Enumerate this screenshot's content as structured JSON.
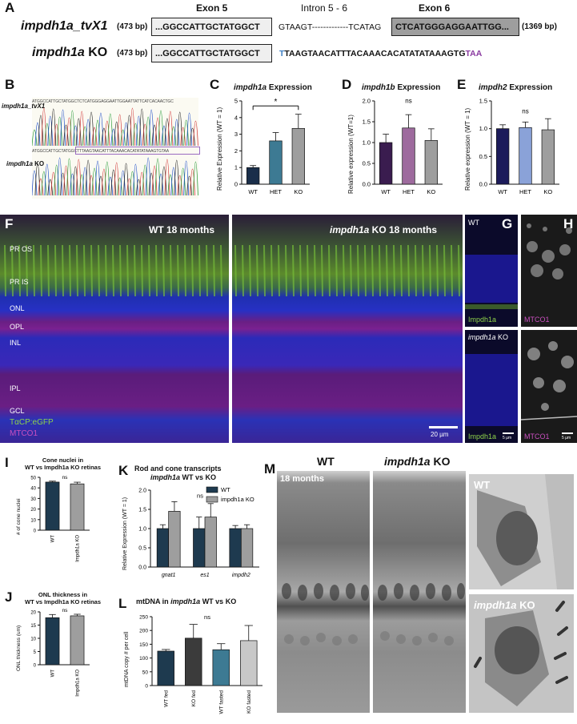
{
  "panelA": {
    "letter": "A",
    "exon5": "Exon 5",
    "intron": "Intron 5 - 6",
    "exon6": "Exon 6",
    "row1_name": "impdh1a_tvX1",
    "row1_left_bp": "(473 bp)",
    "row1_box1": "...GGCCATTGCTATGGCT",
    "row1_intron_seq": "GTAAGT-------------TCATAG",
    "row1_box2": "CTCATGGGAGGAATTGG...",
    "row1_right_bp": "(1369 bp)",
    "row2_name_italic": "impdh1a",
    "row2_name_rest": " KO",
    "row2_left_bp": "(473 bp)",
    "row2_box1": "...GGCCATTGCTATGGCT",
    "row2_seq_first": "T",
    "row2_seq_mid": "TAAGTAACATTTACAAACACATATATAAAGTG",
    "row2_seq_end": "TAA",
    "colors": {
      "blue": "#3d7fc4",
      "purple": "#8a3aa0",
      "exon6_fill": "#9e9e9e",
      "exon5_fill": "#efefef"
    }
  },
  "panelB": {
    "letter": "B",
    "label1": "impdh1a_tvX1",
    "label2_italic": "impdh1a",
    "label2_rest": " KO",
    "seq1": "ATGGCCATTGCTATGGCTCTCATGGGAGGAATTGGAATTATTCATCACAACTGC",
    "seq2": "ATGGCCATTGCTATGGCTTTAAGTAACATTTACAAACACATATATAAAGTGTAA"
  },
  "panelC": {
    "letter": "C",
    "title_italic": "impdh1a",
    "title_rest": " Expression",
    "ylabel": "Relative Expression (WT = 1)",
    "sig": "*"
  },
  "panelD": {
    "letter": "D",
    "title_italic": "impdh1b",
    "title_rest": " Expression",
    "ylabel": "Relative expression (WT=1)",
    "sig": "ns"
  },
  "panelE": {
    "letter": "E",
    "title_italic": "impdh2",
    "title_rest": " Expression",
    "ylabel": "Relative expression (WT = 1)",
    "sig": "ns"
  },
  "panelF": {
    "letter": "F",
    "title_wt": "WT 18 months",
    "title_ko_italic": "impdh1a",
    "title_ko_rest": " KO 18 months",
    "layers": [
      "PR OS",
      "PR IS",
      "ONL",
      "OPL",
      "INL",
      "IPL",
      "GCL"
    ],
    "legend1": "TαCP:eGFP",
    "legend2": "MTCO1",
    "scale": "20 µm"
  },
  "panelG": {
    "letter": "G",
    "top_label": "WT",
    "top_stain": "Impdh1a",
    "bottom_label_italic": "impdh1a",
    "bottom_label_rest": " KO",
    "bottom_stain": "Impdh1a",
    "scale": "5 µm"
  },
  "panelH": {
    "letter": "H",
    "top_stain": "MTCO1",
    "bottom_stain": "MTCO1",
    "scale": "5 µm"
  },
  "panelI": {
    "letter": "I",
    "title": "Cone nuclei in\nWT vs Impdh1a KO retinas",
    "ylabel": "# of cone nuclei",
    "sig": "ns"
  },
  "panelJ": {
    "letter": "J",
    "title": "ONL thickness in\nWT vs Impdh1a KO retinas",
    "ylabel": "ONL thickness (um)",
    "sig": "ns"
  },
  "panelK": {
    "letter": "K",
    "title1": "Rod and cone transcripts",
    "title2_italic": "impdh1a",
    "title2_rest": " WT vs KO",
    "ylabel": "Relative Expression (WT = 1)",
    "sig": "ns"
  },
  "panelL": {
    "letter": "L",
    "title_pre": "mtDNA in ",
    "title_italic": "impdh1a",
    "title_rest": " WT vs KO",
    "ylabel": "mtDNA copy # per cell",
    "sig": "ns"
  },
  "panelM": {
    "letter": "M",
    "wt": "WT",
    "ko_italic": "impdh1a",
    "ko_rest": " KO",
    "age": "18 months",
    "inset_wt": "WT",
    "inset_ko_italic": "impdh1a",
    "inset_ko_rest": " KO"
  },
  "chart_data": [
    {
      "panel": "C",
      "type": "bar",
      "categories": [
        "WT",
        "HET",
        "KO"
      ],
      "values": [
        1.0,
        2.6,
        3.35
      ],
      "errors": [
        0.12,
        0.5,
        0.85
      ],
      "colors": [
        "#1a2e4a",
        "#3d7a93",
        "#9e9e9e"
      ],
      "ylim": [
        0,
        5
      ],
      "yticks": [
        0,
        1,
        2,
        3,
        4,
        5
      ],
      "title": "impdh1a Expression",
      "ylabel": "Relative Expression (WT = 1)"
    },
    {
      "panel": "D",
      "type": "bar",
      "categories": [
        "WT",
        "HET",
        "KO"
      ],
      "values": [
        1.0,
        1.35,
        1.05
      ],
      "errors": [
        0.2,
        0.32,
        0.28
      ],
      "colors": [
        "#3a1c4f",
        "#9e6b9e",
        "#9e9e9e"
      ],
      "ylim": [
        0,
        2.0
      ],
      "yticks": [
        0.0,
        0.5,
        1.0,
        1.5,
        2.0
      ],
      "title": "impdh1b Expression",
      "ylabel": "Relative expression (WT=1)"
    },
    {
      "panel": "E",
      "type": "bar",
      "categories": [
        "WT",
        "HET",
        "KO"
      ],
      "values": [
        1.0,
        1.02,
        0.98
      ],
      "errors": [
        0.07,
        0.1,
        0.2
      ],
      "colors": [
        "#1c1b5a",
        "#8aa2d8",
        "#9e9e9e"
      ],
      "ylim": [
        0,
        1.5
      ],
      "yticks": [
        0.0,
        0.5,
        1.0,
        1.5
      ],
      "title": "impdh2 Expression",
      "ylabel": "Relative expression (WT = 1)"
    },
    {
      "panel": "I",
      "type": "bar",
      "categories": [
        "WT",
        "Impdh1a KO"
      ],
      "values": [
        45.5,
        43.8
      ],
      "errors": [
        0.9,
        1.6
      ],
      "colors": [
        "#1e3a4f",
        "#9e9e9e"
      ],
      "ylim": [
        0,
        50
      ],
      "yticks": [
        0,
        10,
        20,
        30,
        40,
        50
      ],
      "title": "Cone nuclei in WT vs Impdh1a KO retinas",
      "ylabel": "# of cone nuclei"
    },
    {
      "panel": "J",
      "type": "bar",
      "categories": [
        "WT",
        "Impdh1a KO"
      ],
      "values": [
        17.8,
        18.5
      ],
      "errors": [
        1.2,
        0.6
      ],
      "colors": [
        "#1e3a4f",
        "#9e9e9e"
      ],
      "ylim": [
        0,
        20
      ],
      "yticks": [
        0,
        5,
        10,
        15,
        20
      ],
      "title": "ONL thickness in WT vs Impdh1a KO retinas",
      "ylabel": "ONL thickness (um)"
    },
    {
      "panel": "K",
      "type": "bar",
      "categories": [
        "gnat1",
        "es1",
        "impdh2"
      ],
      "series": [
        {
          "name": "WT",
          "values": [
            1.0,
            1.0,
            1.0
          ],
          "errors": [
            0.1,
            0.3,
            0.08
          ],
          "color": "#1e3a4f"
        },
        {
          "name": "impdh1a KO",
          "values": [
            1.45,
            1.3,
            1.0
          ],
          "errors": [
            0.25,
            0.35,
            0.1
          ],
          "color": "#9e9e9e"
        }
      ],
      "ylim": [
        0,
        2.0
      ],
      "yticks": [
        0.0,
        0.5,
        1.0,
        1.5,
        2.0
      ],
      "title": "Rod and cone transcripts impdh1a WT vs KO",
      "ylabel": "Relative Expression (WT = 1)"
    },
    {
      "panel": "L",
      "type": "bar",
      "categories": [
        "WT fed",
        "KO fed",
        "WT fasted",
        "KO fasted"
      ],
      "values": [
        125,
        172,
        130,
        163
      ],
      "errors": [
        6,
        50,
        22,
        55
      ],
      "colors": [
        "#1e3a4f",
        "#3b3b3b",
        "#3d7a93",
        "#c8c8c8"
      ],
      "ylim": [
        0,
        250
      ],
      "yticks": [
        0,
        50,
        100,
        150,
        200,
        250
      ],
      "title": "mtDNA in impdh1a WT vs KO",
      "ylabel": "mtDNA copy # per cell"
    }
  ]
}
